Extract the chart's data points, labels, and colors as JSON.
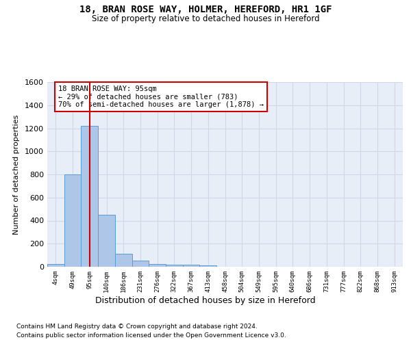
{
  "title": "18, BRAN ROSE WAY, HOLMER, HEREFORD, HR1 1GF",
  "subtitle": "Size of property relative to detached houses in Hereford",
  "xlabel": "Distribution of detached houses by size in Hereford",
  "ylabel": "Number of detached properties",
  "bin_labels": [
    "4sqm",
    "49sqm",
    "95sqm",
    "140sqm",
    "186sqm",
    "231sqm",
    "276sqm",
    "322sqm",
    "367sqm",
    "413sqm",
    "458sqm",
    "504sqm",
    "549sqm",
    "595sqm",
    "640sqm",
    "686sqm",
    "731sqm",
    "777sqm",
    "822sqm",
    "868sqm",
    "913sqm"
  ],
  "bar_heights": [
    25,
    800,
    1220,
    450,
    115,
    55,
    25,
    20,
    15,
    10,
    0,
    0,
    0,
    0,
    0,
    0,
    0,
    0,
    0,
    0,
    0
  ],
  "bar_color": "#aec6e8",
  "bar_edge_color": "#5b9bd5",
  "red_line_index": 2,
  "ylim": [
    0,
    1600
  ],
  "yticks": [
    0,
    200,
    400,
    600,
    800,
    1000,
    1200,
    1400,
    1600
  ],
  "annotation_text": "18 BRAN ROSE WAY: 95sqm\n← 29% of detached houses are smaller (783)\n70% of semi-detached houses are larger (1,878) →",
  "annotation_box_color": "#ffffff",
  "annotation_box_edgecolor": "#cc0000",
  "grid_color": "#d0d8e8",
  "background_color": "#e8eef8",
  "footer_line1": "Contains HM Land Registry data © Crown copyright and database right 2024.",
  "footer_line2": "Contains public sector information licensed under the Open Government Licence v3.0."
}
